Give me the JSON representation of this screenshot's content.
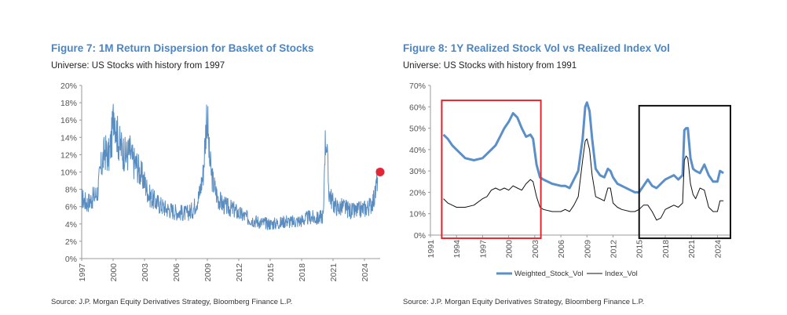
{
  "colors": {
    "title": "#4a86c5",
    "stock": "#5b8fc9",
    "stock_left": "#5a8cbf",
    "index": "#111111",
    "red_box": "#e0282e",
    "black_box": "#111111",
    "marker": "#e32636"
  },
  "chart_data": [
    {
      "type": "line",
      "title": "Figure 7: 1M Return Dispersion for Basket of Stocks",
      "subtitle": "Universe: US Stocks with history from 1997",
      "source": "Source: J.P. Morgan Equity Derivatives Strategy, Bloomberg Finance L.P.",
      "ylim": [
        0,
        20
      ],
      "yticks": [
        "0%",
        "2%",
        "4%",
        "6%",
        "8%",
        "10%",
        "12%",
        "14%",
        "16%",
        "18%",
        "20%"
      ],
      "xlim": [
        1997,
        2025.5
      ],
      "xticks": [
        "1997",
        "2000",
        "2003",
        "2006",
        "2009",
        "2012",
        "2015",
        "2018",
        "2021",
        "2024"
      ],
      "series": [
        {
          "x": [
            1997.0,
            1997.5,
            1998.0,
            1998.5,
            1998.8,
            1999.2,
            1999.6,
            1999.9,
            2000.1,
            2000.3,
            2000.6,
            2000.9,
            2001.2,
            2001.6,
            2001.9,
            2002.3,
            2002.6,
            2002.9,
            2003.4,
            2004.0,
            2005.0,
            2006.0,
            2007.0,
            2007.6,
            2008.2,
            2008.6,
            2008.85,
            2008.95,
            2009.05,
            2009.2,
            2009.5,
            2010.0,
            2010.5,
            2011.0,
            2011.6,
            2012.0,
            2013.0,
            2014.0,
            2015.0,
            2016.0,
            2016.5,
            2017.0,
            2018.0,
            2018.8,
            2019.5,
            2020.1,
            2020.2,
            2020.35,
            2020.6,
            2021.0,
            2021.5,
            2022.0,
            2022.5,
            2023.0,
            2023.5,
            2024.0,
            2024.5,
            2025.0,
            2025.25
          ],
          "values": [
            7.0,
            6.4,
            6.9,
            7.6,
            10.2,
            12.4,
            11.8,
            14.2,
            17.6,
            14.8,
            13.2,
            12.6,
            11.8,
            12.4,
            11.2,
            10.8,
            9.8,
            9.2,
            7.4,
            6.6,
            5.8,
            5.4,
            5.2,
            5.6,
            7.2,
            9.8,
            14.8,
            17.0,
            15.2,
            11.4,
            9.0,
            7.0,
            6.2,
            5.9,
            5.6,
            5.2,
            4.6,
            4.2,
            4.0,
            4.1,
            4.4,
            4.2,
            4.4,
            4.8,
            4.6,
            5.0,
            12.6,
            14.2,
            7.8,
            6.4,
            5.8,
            6.0,
            5.6,
            5.4,
            5.6,
            5.8,
            6.0,
            7.2,
            9.6
          ]
        }
      ],
      "highlight_point": {
        "x": 2025.5,
        "y": 10.0
      }
    },
    {
      "type": "line",
      "title": "Figure 8: 1Y Realized Stock Vol vs Realized Index Vol",
      "subtitle": "Universe: US Stocks with history from 1991",
      "source": "Source: J.P. Morgan Equity Derivatives Strategy, Bloomberg Finance L.P.",
      "ylim": [
        0,
        70
      ],
      "yticks": [
        "0%",
        "10%",
        "20%",
        "30%",
        "40%",
        "50%",
        "60%",
        "70%"
      ],
      "xlim": [
        1991,
        2025.5
      ],
      "xticks": [
        "1991",
        "1994",
        "1997",
        "2000",
        "2003",
        "2006",
        "2009",
        "2012",
        "2015",
        "2018",
        "2021",
        "2024"
      ],
      "legend": [
        "Weighted_Stock_Vol",
        "Index_Vol"
      ],
      "series": [
        {
          "name": "Weighted_Stock_Vol",
          "x": [
            1992.5,
            1993.0,
            1993.5,
            1994.0,
            1995.0,
            1996.0,
            1997.0,
            1997.5,
            1998.0,
            1998.5,
            1999.0,
            1999.5,
            2000.0,
            2000.5,
            2001.0,
            2001.5,
            2002.0,
            2002.5,
            2002.8,
            2003.2,
            2003.6,
            2004.0,
            2005.0,
            2006.0,
            2006.5,
            2007.0,
            2007.5,
            2008.0,
            2008.5,
            2008.8,
            2009.0,
            2009.3,
            2009.6,
            2010.0,
            2010.5,
            2011.0,
            2011.4,
            2011.7,
            2012.0,
            2012.5,
            2013.0,
            2014.0,
            2014.5,
            2015.0,
            2015.5,
            2016.0,
            2016.5,
            2017.0,
            2017.5,
            2018.0,
            2018.5,
            2019.0,
            2019.5,
            2020.0,
            2020.2,
            2020.4,
            2020.6,
            2020.9,
            2021.2,
            2021.5,
            2022.0,
            2022.5,
            2023.0,
            2023.5,
            2024.0,
            2024.3,
            2024.7
          ],
          "values": [
            47,
            45,
            42,
            40,
            36,
            35,
            36,
            38,
            40,
            42,
            46,
            50,
            53,
            57,
            55,
            50,
            46,
            47,
            45,
            33,
            27,
            26,
            24,
            23,
            23,
            22,
            26,
            30,
            45,
            60,
            62,
            58,
            45,
            31,
            28,
            27,
            31,
            30,
            27,
            24,
            23,
            21,
            20,
            20,
            23,
            26,
            23,
            22,
            24,
            26,
            27,
            28,
            26,
            28,
            49,
            50,
            50,
            36,
            31,
            30,
            29,
            33,
            28,
            25,
            25,
            30,
            29
          ]
        },
        {
          "name": "Index_Vol",
          "x": [
            1992.5,
            1993.0,
            1993.5,
            1994.0,
            1995.0,
            1996.0,
            1997.0,
            1997.5,
            1998.0,
            1998.5,
            1999.0,
            1999.5,
            2000.0,
            2000.5,
            2001.0,
            2001.5,
            2002.0,
            2002.5,
            2002.8,
            2003.2,
            2003.6,
            2004.0,
            2005.0,
            2006.0,
            2006.5,
            2007.0,
            2007.5,
            2008.0,
            2008.5,
            2008.8,
            2009.0,
            2009.3,
            2009.6,
            2010.0,
            2010.5,
            2011.0,
            2011.4,
            2011.7,
            2012.0,
            2012.5,
            2013.0,
            2014.0,
            2014.5,
            2015.0,
            2015.5,
            2016.0,
            2016.5,
            2017.0,
            2017.5,
            2018.0,
            2018.5,
            2019.0,
            2019.5,
            2020.0,
            2020.2,
            2020.4,
            2020.6,
            2020.9,
            2021.2,
            2021.5,
            2022.0,
            2022.5,
            2023.0,
            2023.5,
            2024.0,
            2024.3,
            2024.7
          ],
          "values": [
            17,
            15,
            14,
            13,
            13,
            14,
            17,
            18,
            21,
            22,
            21,
            22,
            21,
            23,
            22,
            21,
            24,
            26,
            25,
            18,
            13,
            12,
            11,
            11,
            12,
            11,
            14,
            18,
            35,
            44,
            45,
            40,
            28,
            18,
            17,
            16,
            22,
            22,
            15,
            13,
            12,
            11,
            11,
            12,
            14,
            14,
            11,
            7,
            8,
            12,
            13,
            14,
            13,
            15,
            35,
            37,
            36,
            24,
            19,
            17,
            22,
            21,
            13,
            11,
            11,
            16,
            16
          ]
        }
      ]
    }
  ]
}
